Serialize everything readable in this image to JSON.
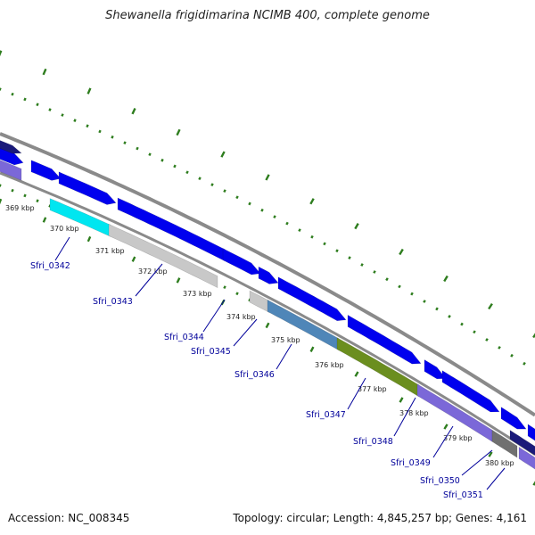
{
  "title": "Shewanella frigidimarina NCIMB 400, complete genome",
  "footer": {
    "accession": "Accession: NC_008345",
    "topology": "Topology: circular; Length: 4,845,257 bp; Genes: 4,161"
  },
  "colors": {
    "backbone": "#8a8a8a",
    "forward_gene": "#0000ee",
    "tick": "#2e7d1e",
    "label": "#00009a"
  },
  "kbp_labels": [
    "369 kbp",
    "370 kbp",
    "371 kbp",
    "372 kbp",
    "373 kbp",
    "374 kbp",
    "375 kbp",
    "376 kbp",
    "377 kbp",
    "378 kbp",
    "379 kbp",
    "380 kbp"
  ],
  "gene_labels": [
    "Sfri_0342",
    "Sfri_0343",
    "Sfri_0344",
    "Sfri_0345",
    "Sfri_0346",
    "Sfri_0347",
    "Sfri_0348",
    "Sfri_0349",
    "Sfri_0350",
    "Sfri_0351"
  ]
}
